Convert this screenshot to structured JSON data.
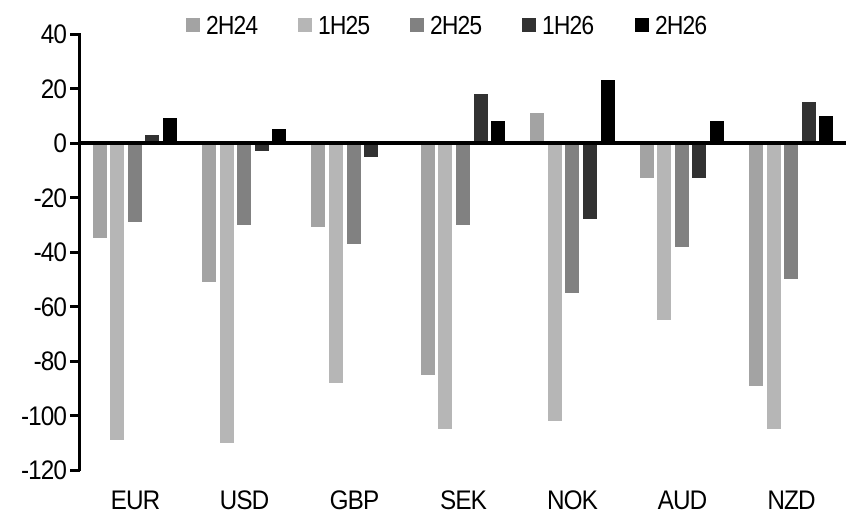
{
  "chart_data": {
    "type": "bar",
    "title": "",
    "xlabel": "",
    "ylabel": "",
    "categories": [
      "EUR",
      "USD",
      "GBP",
      "SEK",
      "NOK",
      "AUD",
      "NZD"
    ],
    "series": [
      {
        "name": "2H24",
        "color": "#a3a3a3",
        "values": [
          -35,
          -51,
          -31,
          -85,
          11,
          -13,
          -89
        ]
      },
      {
        "name": "1H25",
        "color": "#b6b6b6",
        "values": [
          -109,
          -110,
          -88,
          -105,
          -102,
          -65,
          -105
        ]
      },
      {
        "name": "2H25",
        "color": "#818181",
        "values": [
          -29,
          -30,
          -37,
          -30,
          -55,
          -38,
          -50
        ]
      },
      {
        "name": "1H26",
        "color": "#323232",
        "values": [
          3,
          -3,
          -5,
          18,
          -28,
          -13,
          15
        ]
      },
      {
        "name": "2H26",
        "color": "#000000",
        "values": [
          9,
          5,
          0,
          8,
          23,
          8,
          10
        ]
      }
    ],
    "ylim": [
      -120,
      40
    ],
    "yticks": [
      40,
      20,
      0,
      -20,
      -40,
      -60,
      -80,
      -100,
      -120
    ],
    "ytick_step": 20,
    "grid": false,
    "legend_position": "top",
    "axis_color": "#000000",
    "background_color": "#ffffff"
  }
}
